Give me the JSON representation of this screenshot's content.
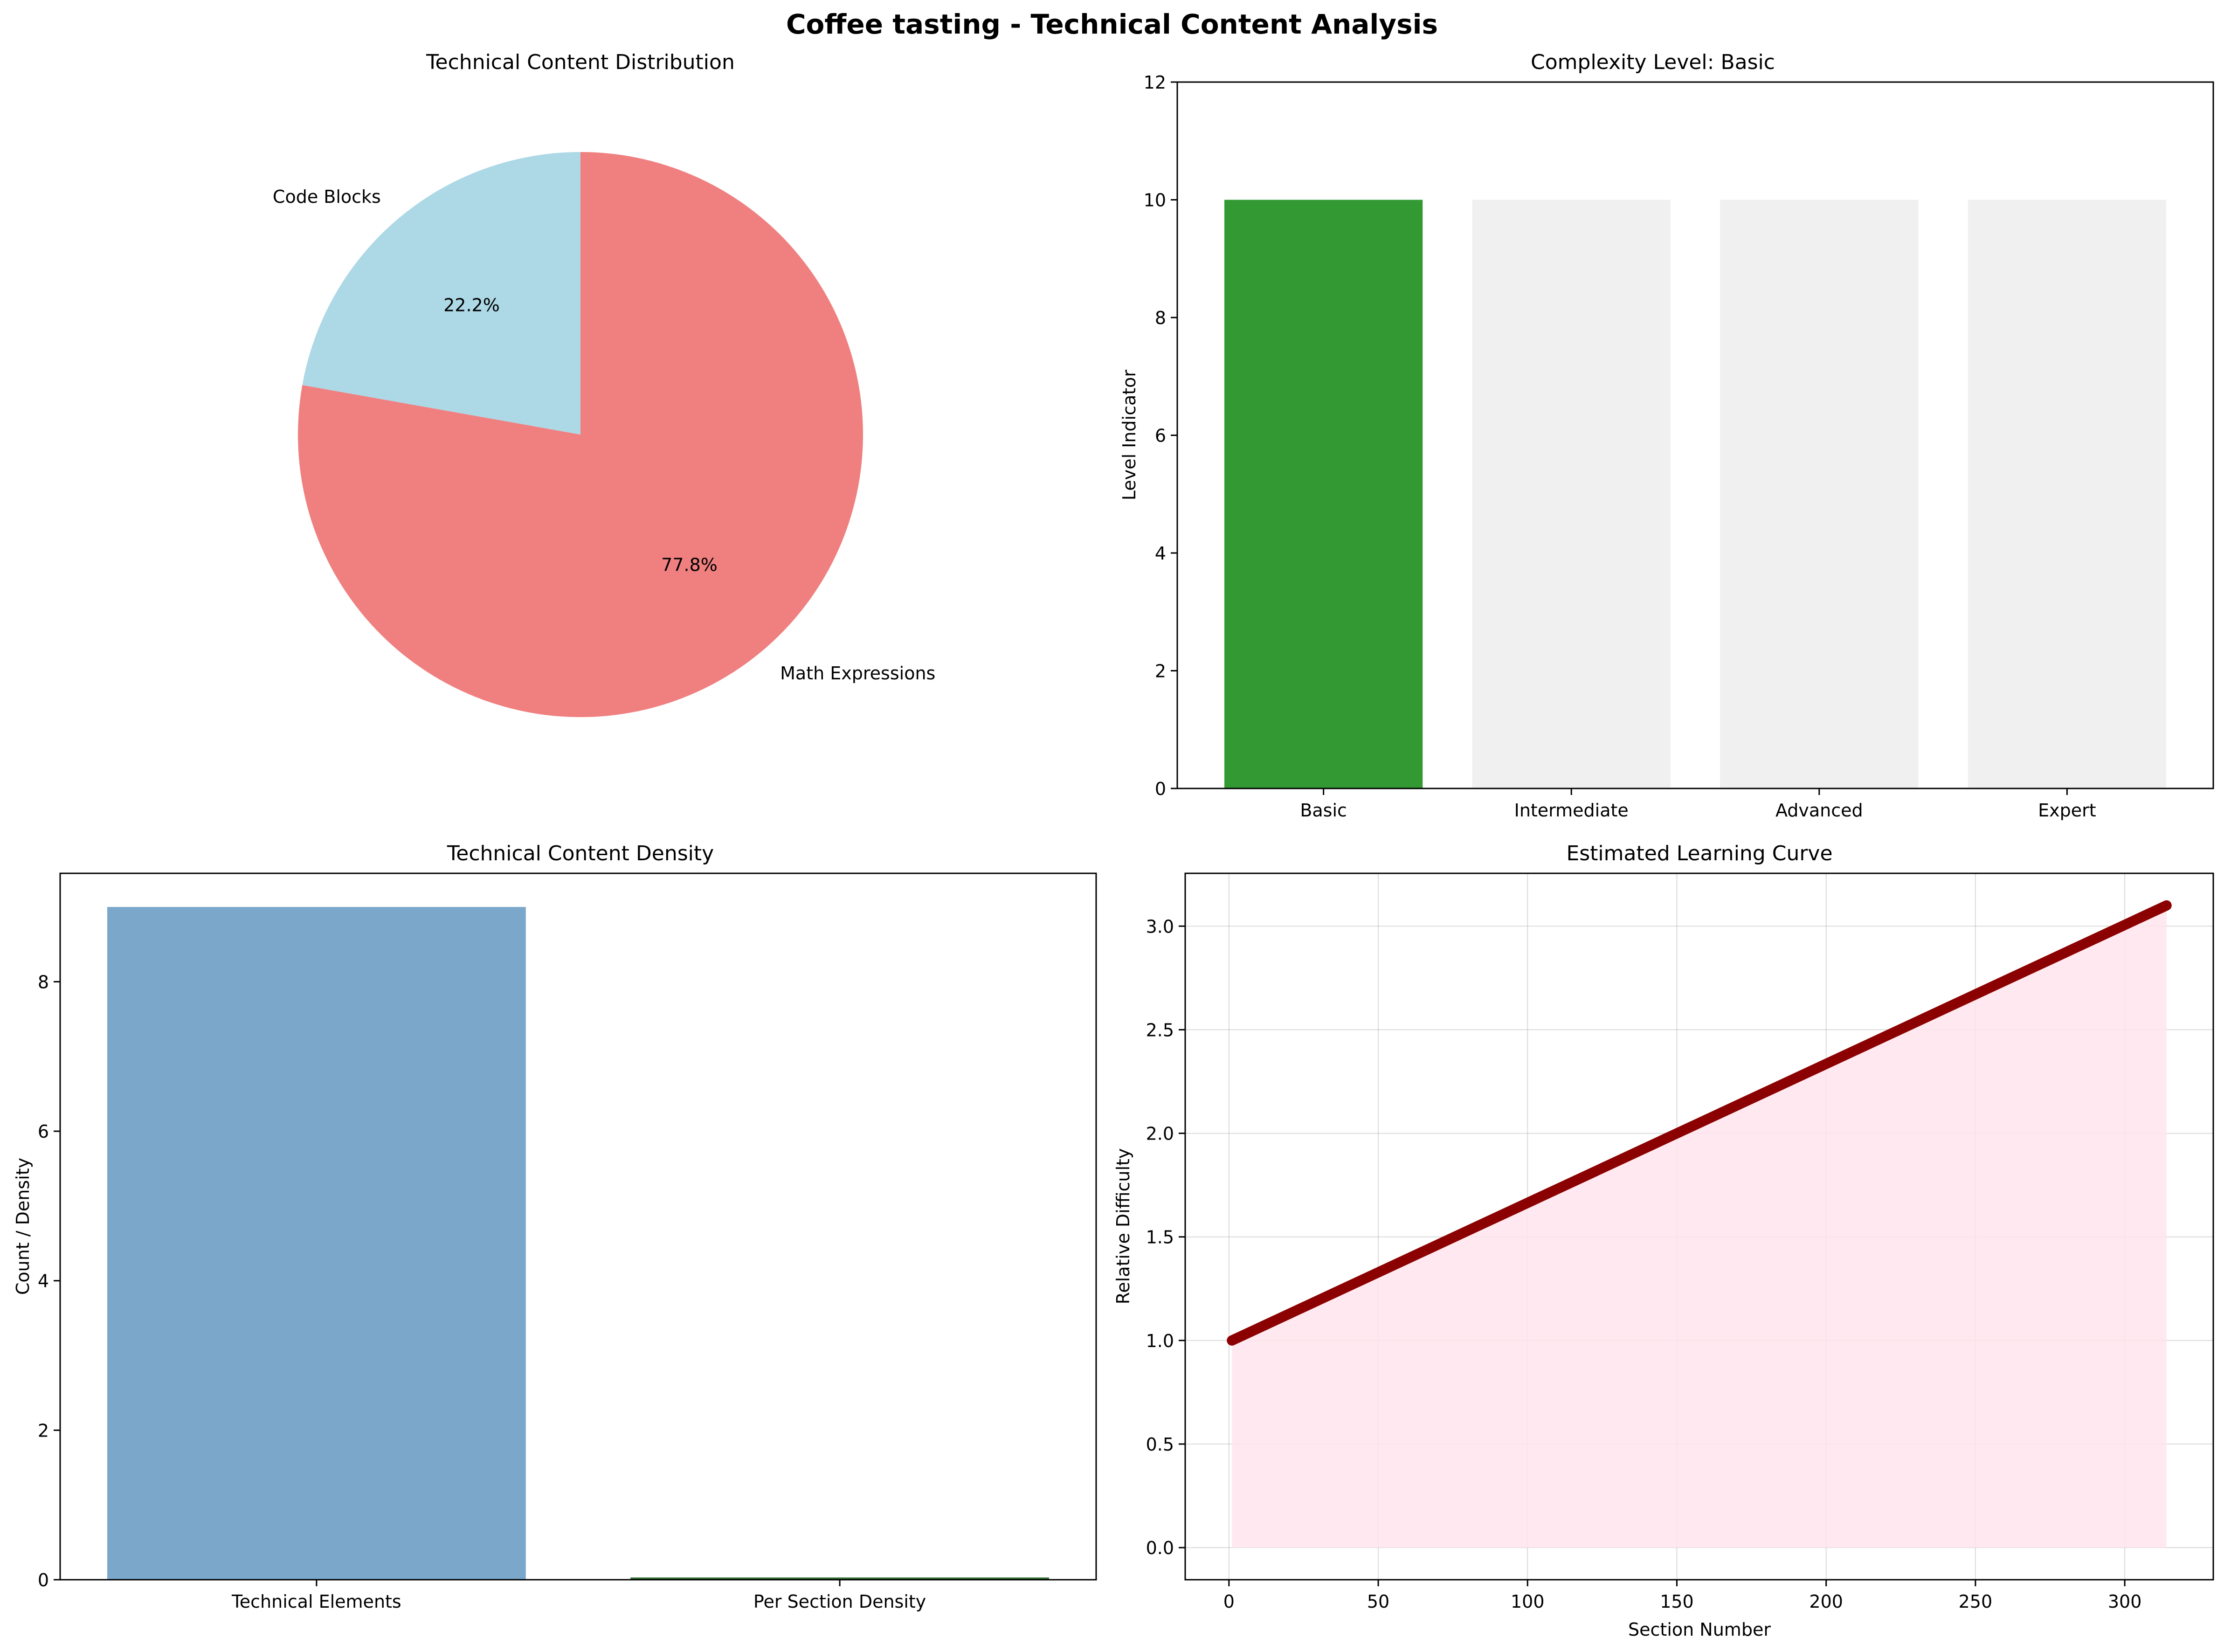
{
  "figure_title": "Coffee tasting - Technical Content Analysis",
  "chart_data": [
    {
      "type": "pie",
      "title": "Technical Content Distribution",
      "labels": [
        "Code Blocks",
        "Math Expressions"
      ],
      "values": [
        22.2,
        77.8
      ],
      "pct_labels": [
        "22.2%",
        "77.8%"
      ],
      "colors": [
        "#add8e6",
        "#f08080"
      ]
    },
    {
      "type": "bar",
      "title": "Complexity Level: Basic",
      "categories": [
        "Basic",
        "Intermediate",
        "Advanced",
        "Expert"
      ],
      "values": [
        10,
        10,
        10,
        10
      ],
      "colors": [
        "#339933",
        "#f0f0f0",
        "#f0f0f0",
        "#f0f0f0"
      ],
      "ylabel": "Level Indicator",
      "xlabel": "",
      "ylim": [
        0,
        12
      ],
      "yticks": [
        0,
        2,
        4,
        6,
        8,
        10,
        12
      ]
    },
    {
      "type": "bar",
      "title": "Technical Content Density",
      "categories": [
        "Technical Elements",
        "Per Section Density"
      ],
      "values": [
        9,
        0.03
      ],
      "colors": [
        "#7ba7cb",
        "#2e6b2e"
      ],
      "ylabel": "Count / Density",
      "xlabel": "",
      "ylim": [
        0,
        9.45
      ],
      "yticks": [
        0,
        2,
        4,
        6,
        8
      ]
    },
    {
      "type": "area",
      "title": "Estimated Learning Curve",
      "xlabel": "Section Number",
      "ylabel": "Relative Difficulty",
      "x": [
        1,
        314
      ],
      "y": [
        1.0,
        3.1
      ],
      "xlim": [
        -14.65,
        329.65
      ],
      "ylim": [
        -0.155,
        3.255
      ],
      "xticks": [
        0,
        50,
        100,
        150,
        200,
        250,
        300
      ],
      "yticks": [
        0.0,
        0.5,
        1.0,
        1.5,
        2.0,
        2.5,
        3.0
      ],
      "line_color": "#8b0000",
      "fill_color": "#ffe4ec",
      "grid": true
    }
  ]
}
